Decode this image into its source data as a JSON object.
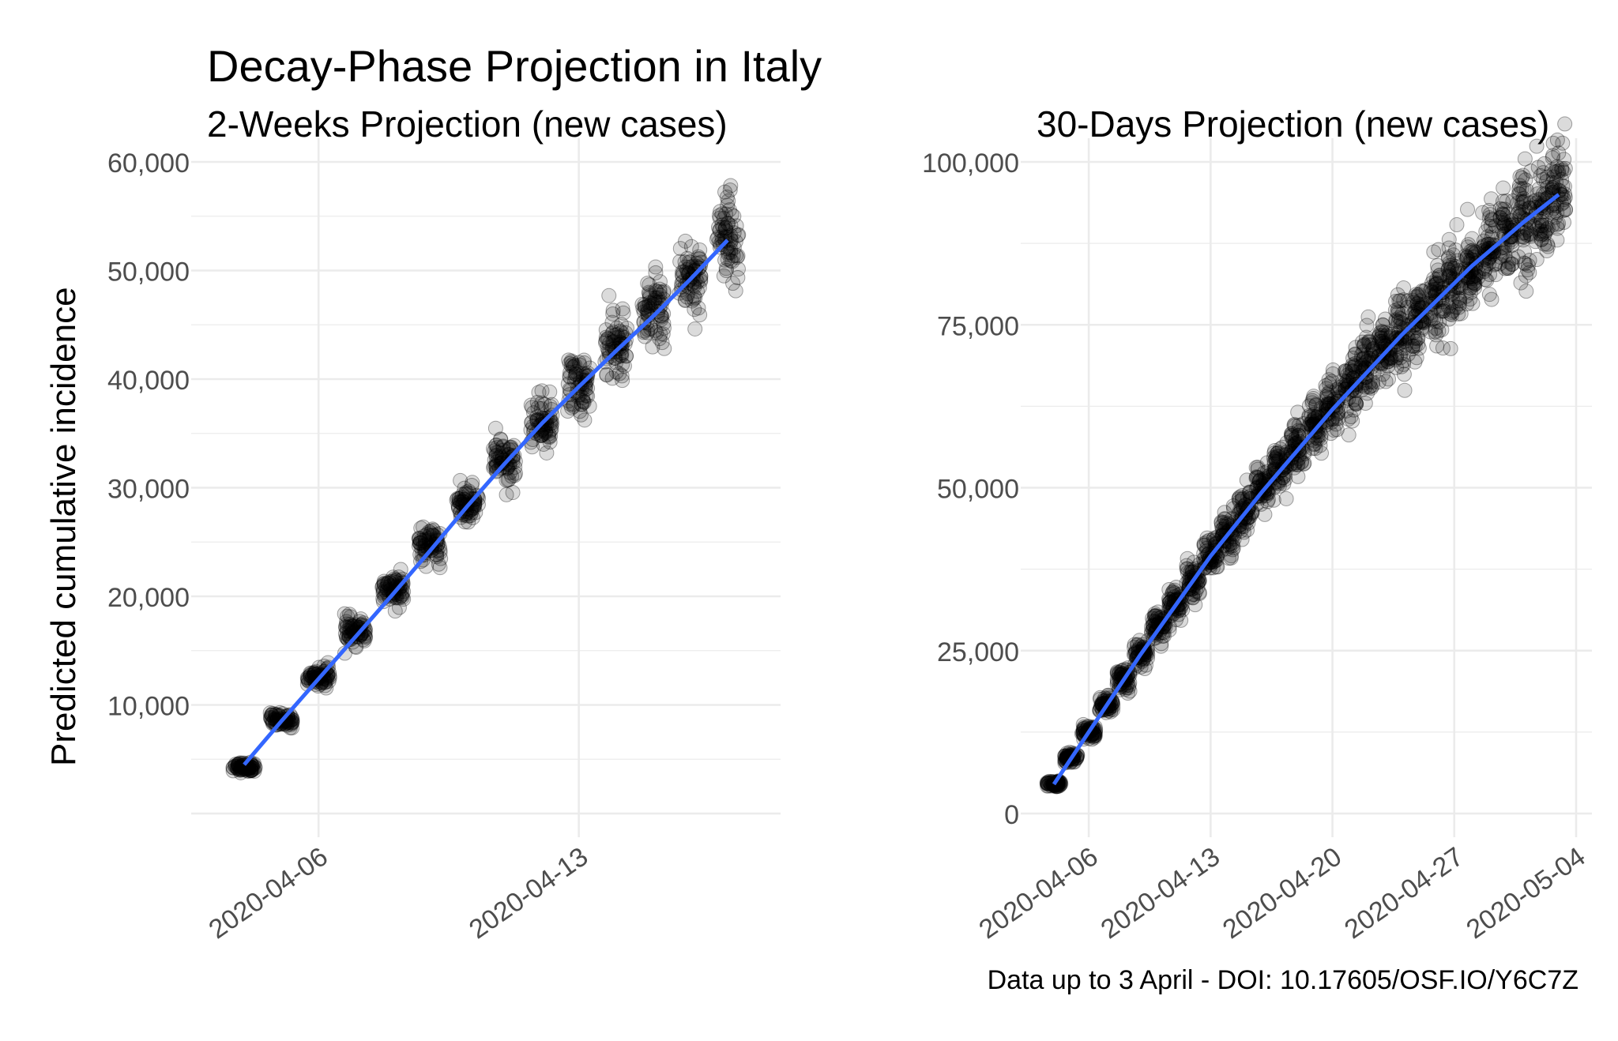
{
  "title": "Decay-Phase Projection in Italy",
  "ylabel": "Predicted cumulative incidence",
  "caption": "Data up to 3 April - DOI: 10.17605/OSF.IO/Y6C7Z",
  "colors": {
    "line": "#3366ff",
    "points": "#000000",
    "grid": "#ebebeb",
    "tick_text": "#4d4d4d"
  },
  "chart_data": [
    {
      "type": "scatter",
      "title": "2-Weeks Projection (new cases)",
      "xlabel": "",
      "ylabel": "Predicted cumulative incidence",
      "x_type": "date",
      "xlim": [
        "2020-04-03",
        "2020-04-18"
      ],
      "ylim": [
        0,
        60000
      ],
      "x_ticks": [
        "2020-04-06",
        "2020-04-13"
      ],
      "y_ticks": [
        10000,
        20000,
        30000,
        40000,
        50000,
        60000
      ],
      "y_tick_labels": [
        "10,000",
        "20,000",
        "30,000",
        "40,000",
        "50,000",
        "60,000"
      ],
      "grid": true,
      "series": [
        {
          "kind": "simulated points (jittered, semi-transparent)",
          "x": [
            "2020-04-04",
            "2020-04-05",
            "2020-04-06",
            "2020-04-07",
            "2020-04-08",
            "2020-04-09",
            "2020-04-10",
            "2020-04-11",
            "2020-04-12",
            "2020-04-13",
            "2020-04-14",
            "2020-04-15",
            "2020-04-16",
            "2020-04-17"
          ],
          "y_mean": [
            4300,
            8600,
            12600,
            16800,
            20600,
            24600,
            28500,
            32300,
            36000,
            39500,
            43000,
            46200,
            49500,
            53200
          ],
          "y_spread": [
            500,
            700,
            1000,
            1300,
            1500,
            1700,
            2000,
            2300,
            2600,
            3000,
            3300,
            3600,
            3800,
            4300
          ]
        },
        {
          "kind": "smoothed trend line",
          "x": [
            "2020-04-04",
            "2020-04-05",
            "2020-04-06",
            "2020-04-07",
            "2020-04-08",
            "2020-04-09",
            "2020-04-10",
            "2020-04-11",
            "2020-04-12",
            "2020-04-13",
            "2020-04-14",
            "2020-04-15",
            "2020-04-16",
            "2020-04-17"
          ],
          "y": [
            4500,
            8500,
            12400,
            16300,
            20200,
            24200,
            28300,
            32200,
            35900,
            39300,
            42600,
            45800,
            49200,
            52800
          ]
        }
      ]
    },
    {
      "type": "scatter",
      "title": "30-Days Projection (new cases)",
      "xlabel": "",
      "ylabel": "",
      "x_type": "date",
      "xlim": [
        "2020-04-03",
        "2020-05-04"
      ],
      "ylim": [
        0,
        100000
      ],
      "x_ticks": [
        "2020-04-06",
        "2020-04-13",
        "2020-04-20",
        "2020-04-27",
        "2020-05-04"
      ],
      "y_ticks": [
        0,
        25000,
        50000,
        75000,
        100000
      ],
      "y_tick_labels": [
        "0",
        "25,000",
        "50,000",
        "75,000",
        "100,000"
      ],
      "grid": true,
      "series": [
        {
          "kind": "simulated points (jittered, semi-transparent)",
          "x": [
            "2020-04-04",
            "2020-04-05",
            "2020-04-06",
            "2020-04-07",
            "2020-04-08",
            "2020-04-09",
            "2020-04-10",
            "2020-04-11",
            "2020-04-12",
            "2020-04-13",
            "2020-04-14",
            "2020-04-15",
            "2020-04-16",
            "2020-04-17",
            "2020-04-18",
            "2020-04-19",
            "2020-04-20",
            "2020-04-21",
            "2020-04-22",
            "2020-04-23",
            "2020-04-24",
            "2020-04-25",
            "2020-04-26",
            "2020-04-27",
            "2020-04-28",
            "2020-04-29",
            "2020-04-30",
            "2020-05-01",
            "2020-05-02",
            "2020-05-03"
          ],
          "y_mean": [
            4500,
            8500,
            12500,
            16600,
            20600,
            24500,
            28500,
            32200,
            36000,
            39500,
            43000,
            46400,
            49700,
            53000,
            56200,
            59300,
            62400,
            65400,
            68300,
            71100,
            73900,
            76600,
            79200,
            81700,
            84100,
            86500,
            88800,
            91000,
            93100,
            95200
          ],
          "y_spread": [
            600,
            900,
            1200,
            1500,
            1800,
            2100,
            2400,
            2700,
            3000,
            3300,
            3600,
            3900,
            4200,
            4500,
            4800,
            5000,
            5200,
            5400,
            5600,
            5800,
            6000,
            6200,
            6500,
            6800,
            7000,
            7300,
            7600,
            8000,
            8500,
            9000
          ]
        },
        {
          "kind": "smoothed trend line",
          "x": [
            "2020-04-04",
            "2020-04-06",
            "2020-04-09",
            "2020-04-13",
            "2020-04-16",
            "2020-04-20",
            "2020-04-24",
            "2020-04-28",
            "2020-05-01",
            "2020-05-03"
          ],
          "y": [
            4500,
            12500,
            24500,
            39500,
            49500,
            62000,
            73500,
            84000,
            90800,
            95000
          ]
        }
      ]
    }
  ]
}
